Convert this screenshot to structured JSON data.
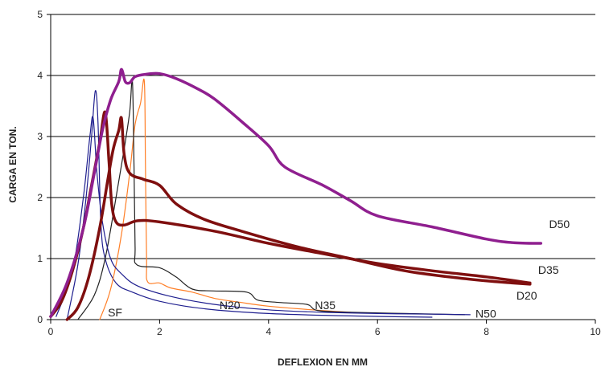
{
  "chart_data": {
    "type": "line",
    "xlabel": "DEFLEXION EN MM",
    "ylabel": "CARGA EN TON.",
    "xlim": [
      0,
      10
    ],
    "ylim": [
      0,
      5
    ],
    "x_ticks": [
      0,
      2,
      4,
      6,
      8,
      10
    ],
    "y_ticks": [
      0,
      1,
      2,
      3,
      4,
      5
    ],
    "grid": "horizontal",
    "series": [
      {
        "name": "SF",
        "color": "#1f1f8f",
        "weight": "thin",
        "points": [
          [
            0.3,
            0
          ],
          [
            0.5,
            0.9
          ],
          [
            0.65,
            2.0
          ],
          [
            0.75,
            3.0
          ],
          [
            0.82,
            3.75
          ],
          [
            0.87,
            3.2
          ],
          [
            0.92,
            1.6
          ],
          [
            1.0,
            1.0
          ],
          [
            1.2,
            0.6
          ],
          [
            1.5,
            0.45
          ],
          [
            2.0,
            0.3
          ],
          [
            2.8,
            0.18
          ],
          [
            4.0,
            0.1
          ],
          [
            5.5,
            0.06
          ],
          [
            7.0,
            0.04
          ]
        ]
      },
      {
        "name": "N20",
        "color": "#ff7f27",
        "weight": "thin",
        "points": [
          [
            0.9,
            0
          ],
          [
            1.1,
            0.5
          ],
          [
            1.3,
            1.4
          ],
          [
            1.45,
            2.4
          ],
          [
            1.55,
            3.2
          ],
          [
            1.65,
            3.55
          ],
          [
            1.72,
            3.9
          ],
          [
            1.74,
            2.5
          ],
          [
            1.76,
            1.0
          ],
          [
            1.78,
            0.62
          ],
          [
            2.0,
            0.6
          ],
          [
            2.2,
            0.52
          ],
          [
            2.6,
            0.45
          ],
          [
            3.0,
            0.35
          ],
          [
            3.5,
            0.28
          ],
          [
            4.0,
            0.22
          ],
          [
            4.8,
            0.16
          ],
          [
            5.5,
            0.12
          ]
        ]
      },
      {
        "name": "N35",
        "color": "#222222",
        "weight": "thin",
        "points": [
          [
            0.5,
            0
          ],
          [
            0.8,
            0.4
          ],
          [
            1.0,
            1.0
          ],
          [
            1.2,
            2.0
          ],
          [
            1.35,
            2.8
          ],
          [
            1.45,
            3.4
          ],
          [
            1.5,
            3.9
          ],
          [
            1.53,
            2.5
          ],
          [
            1.55,
            1.2
          ],
          [
            1.58,
            0.9
          ],
          [
            2.0,
            0.85
          ],
          [
            2.3,
            0.7
          ],
          [
            2.6,
            0.5
          ],
          [
            3.0,
            0.47
          ],
          [
            3.6,
            0.45
          ],
          [
            3.8,
            0.32
          ],
          [
            4.2,
            0.28
          ],
          [
            4.7,
            0.25
          ],
          [
            4.9,
            0.15
          ],
          [
            5.5,
            0.12
          ],
          [
            6.5,
            0.1
          ],
          [
            7.6,
            0.08
          ]
        ]
      },
      {
        "name": "N50",
        "color": "#1f1f8f",
        "weight": "thin",
        "points": [
          [
            0.1,
            0.05
          ],
          [
            0.4,
            0.8
          ],
          [
            0.6,
            2.0
          ],
          [
            0.72,
            3.0
          ],
          [
            0.78,
            3.3
          ],
          [
            0.85,
            2.4
          ],
          [
            0.95,
            1.6
          ],
          [
            1.1,
            1.0
          ],
          [
            1.3,
            0.75
          ],
          [
            1.6,
            0.55
          ],
          [
            2.2,
            0.38
          ],
          [
            3.0,
            0.25
          ],
          [
            4.0,
            0.16
          ],
          [
            5.0,
            0.12
          ],
          [
            6.0,
            0.1
          ],
          [
            7.0,
            0.09
          ],
          [
            7.7,
            0.08
          ]
        ]
      },
      {
        "name": "D20",
        "color": "#7f0f0f",
        "weight": "thick",
        "points": [
          [
            0,
            0.05
          ],
          [
            0.2,
            0.3
          ],
          [
            0.4,
            0.8
          ],
          [
            0.6,
            1.5
          ],
          [
            0.75,
            2.2
          ],
          [
            0.9,
            2.9
          ],
          [
            1.0,
            3.4
          ],
          [
            1.07,
            2.6
          ],
          [
            1.12,
            1.9
          ],
          [
            1.2,
            1.6
          ],
          [
            1.35,
            1.55
          ],
          [
            1.6,
            1.62
          ],
          [
            2.0,
            1.6
          ],
          [
            3.0,
            1.45
          ],
          [
            4.0,
            1.25
          ],
          [
            5.0,
            1.08
          ],
          [
            6.0,
            0.92
          ],
          [
            7.0,
            0.8
          ],
          [
            8.0,
            0.7
          ],
          [
            8.8,
            0.6
          ]
        ]
      },
      {
        "name": "D35",
        "color": "#7f0f0f",
        "weight": "thick",
        "points": [
          [
            0.3,
            0
          ],
          [
            0.5,
            0.2
          ],
          [
            0.7,
            0.7
          ],
          [
            0.9,
            1.5
          ],
          [
            1.05,
            2.3
          ],
          [
            1.15,
            2.8
          ],
          [
            1.25,
            3.1
          ],
          [
            1.3,
            3.3
          ],
          [
            1.35,
            2.7
          ],
          [
            1.45,
            2.4
          ],
          [
            1.7,
            2.3
          ],
          [
            2.0,
            2.2
          ],
          [
            2.3,
            1.9
          ],
          [
            2.8,
            1.65
          ],
          [
            3.5,
            1.45
          ],
          [
            4.5,
            1.2
          ],
          [
            5.5,
            1.0
          ],
          [
            6.5,
            0.8
          ],
          [
            7.5,
            0.68
          ],
          [
            8.2,
            0.62
          ],
          [
            8.8,
            0.58
          ]
        ]
      },
      {
        "name": "D50",
        "color": "#8f1f8f",
        "weight": "thick",
        "points": [
          [
            0,
            0.05
          ],
          [
            0.3,
            0.6
          ],
          [
            0.6,
            1.5
          ],
          [
            0.8,
            2.4
          ],
          [
            0.95,
            3.1
          ],
          [
            1.1,
            3.6
          ],
          [
            1.25,
            3.9
          ],
          [
            1.3,
            4.1
          ],
          [
            1.37,
            3.9
          ],
          [
            1.45,
            3.88
          ],
          [
            1.55,
            3.98
          ],
          [
            1.75,
            4.02
          ],
          [
            2.0,
            4.03
          ],
          [
            2.3,
            3.95
          ],
          [
            2.7,
            3.78
          ],
          [
            3.0,
            3.62
          ],
          [
            3.5,
            3.25
          ],
          [
            4.0,
            2.85
          ],
          [
            4.3,
            2.5
          ],
          [
            5.0,
            2.2
          ],
          [
            5.5,
            1.95
          ],
          [
            6.0,
            1.7
          ],
          [
            7.0,
            1.52
          ],
          [
            8.0,
            1.32
          ],
          [
            8.5,
            1.26
          ],
          [
            9.0,
            1.25
          ]
        ]
      }
    ],
    "series_labels": [
      {
        "text": "SF",
        "x": 1.05,
        "y": 0.05
      },
      {
        "text": "N20",
        "x": 3.1,
        "y": 0.17
      },
      {
        "text": "N35",
        "x": 4.85,
        "y": 0.17
      },
      {
        "text": "N50",
        "x": 7.8,
        "y": 0.03
      },
      {
        "text": "D20",
        "x": 8.55,
        "y": 0.33
      },
      {
        "text": "D35",
        "x": 8.95,
        "y": 0.75
      },
      {
        "text": "D50",
        "x": 9.15,
        "y": 1.5
      }
    ]
  }
}
